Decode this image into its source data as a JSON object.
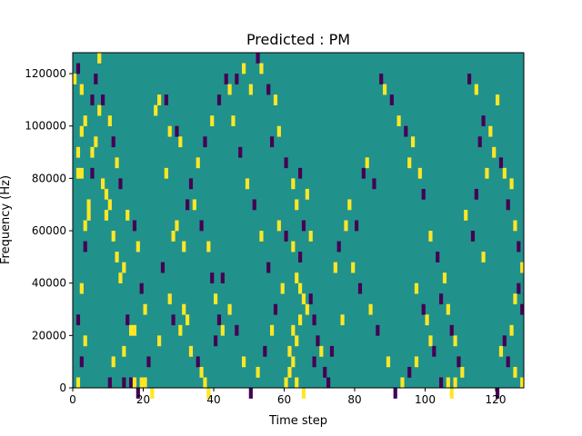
{
  "chart_data": {
    "type": "heatmap",
    "title": "Predicted : PM",
    "xlabel": "Time step",
    "ylabel": "Frequency (Hz)",
    "xlim": [
      0,
      128
    ],
    "ylim": [
      0,
      128000
    ],
    "xticks": [
      0,
      20,
      40,
      60,
      80,
      100,
      120
    ],
    "yticks": [
      0,
      20000,
      40000,
      60000,
      80000,
      100000,
      120000
    ],
    "xtick_labels": [
      "0",
      "20",
      "40",
      "60",
      "80",
      "100",
      "120"
    ],
    "ytick_labels": [
      "0",
      "20000",
      "40000",
      "60000",
      "80000",
      "100000",
      "120000"
    ],
    "grid": false,
    "background_value": 0,
    "colors": {
      "low": "#440154",
      "mid": "#21918c",
      "high": "#fde725"
    },
    "cell_width": 1,
    "cell_height": 4000,
    "cells": [
      [
        0,
        120000,
        1
      ],
      [
        1,
        124000,
        -1
      ],
      [
        2,
        116000,
        1
      ],
      [
        3,
        104000,
        1
      ],
      [
        2,
        100000,
        1
      ],
      [
        1,
        92000,
        1
      ],
      [
        2,
        84000,
        1
      ],
      [
        1,
        84000,
        1
      ],
      [
        4,
        68000,
        1
      ],
      [
        3,
        64000,
        1
      ],
      [
        6,
        120000,
        -1
      ],
      [
        7,
        128000,
        1
      ],
      [
        5,
        112000,
        -1
      ],
      [
        7,
        108000,
        1
      ],
      [
        5,
        92000,
        1
      ],
      [
        8,
        80000,
        1
      ],
      [
        9,
        76000,
        1
      ],
      [
        10,
        72000,
        1
      ],
      [
        9,
        68000,
        1
      ],
      [
        11,
        60000,
        1
      ],
      [
        12,
        52000,
        1
      ],
      [
        14,
        48000,
        1
      ],
      [
        13,
        44000,
        1
      ],
      [
        15,
        28000,
        -1
      ],
      [
        16,
        24000,
        1
      ],
      [
        17,
        24000,
        1
      ],
      [
        14,
        16000,
        1
      ],
      [
        11,
        12000,
        1
      ],
      [
        10,
        4000,
        -1
      ],
      [
        14,
        4000,
        -1
      ],
      [
        16,
        4000,
        -1
      ],
      [
        17,
        4000,
        1
      ],
      [
        19,
        4000,
        1
      ],
      [
        20,
        4000,
        1
      ],
      [
        18,
        0,
        -1
      ],
      [
        22,
        0,
        1
      ],
      [
        24,
        112000,
        1
      ],
      [
        23,
        108000,
        1
      ],
      [
        26,
        112000,
        -1
      ],
      [
        27,
        100000,
        1
      ],
      [
        29,
        100000,
        -1
      ],
      [
        26,
        84000,
        1
      ],
      [
        30,
        96000,
        1
      ],
      [
        32,
        72000,
        -1
      ],
      [
        28,
        60000,
        1
      ],
      [
        31,
        56000,
        1
      ],
      [
        29,
        64000,
        1
      ],
      [
        31,
        32000,
        1
      ],
      [
        32,
        28000,
        1
      ],
      [
        30,
        24000,
        1
      ],
      [
        33,
        16000,
        1
      ],
      [
        35,
        12000,
        -1
      ],
      [
        36,
        8000,
        1
      ],
      [
        37,
        4000,
        1
      ],
      [
        38,
        0,
        1
      ],
      [
        39,
        44000,
        -1
      ],
      [
        40,
        36000,
        1
      ],
      [
        41,
        28000,
        -1
      ],
      [
        42,
        24000,
        1
      ],
      [
        40,
        20000,
        -1
      ],
      [
        43,
        120000,
        -1
      ],
      [
        44,
        116000,
        1
      ],
      [
        46,
        120000,
        -1
      ],
      [
        48,
        124000,
        1
      ],
      [
        50,
        116000,
        1
      ],
      [
        52,
        128000,
        -1
      ],
      [
        53,
        124000,
        1
      ],
      [
        55,
        116000,
        -1
      ],
      [
        57,
        112000,
        1
      ],
      [
        58,
        100000,
        1
      ],
      [
        56,
        96000,
        -1
      ],
      [
        60,
        88000,
        -1
      ],
      [
        62,
        80000,
        1
      ],
      [
        64,
        84000,
        -1
      ],
      [
        66,
        76000,
        1
      ],
      [
        63,
        72000,
        1
      ],
      [
        65,
        64000,
        -1
      ],
      [
        67,
        60000,
        1
      ],
      [
        62,
        56000,
        1
      ],
      [
        64,
        52000,
        -1
      ],
      [
        63,
        44000,
        1
      ],
      [
        64,
        40000,
        1
      ],
      [
        65,
        36000,
        1
      ],
      [
        66,
        32000,
        1
      ],
      [
        64,
        28000,
        1
      ],
      [
        62,
        24000,
        1
      ],
      [
        63,
        20000,
        1
      ],
      [
        61,
        16000,
        1
      ],
      [
        62,
        12000,
        1
      ],
      [
        61,
        8000,
        1
      ],
      [
        60,
        4000,
        1
      ],
      [
        63,
        4000,
        1
      ],
      [
        65,
        0,
        1
      ],
      [
        67,
        36000,
        -1
      ],
      [
        68,
        28000,
        -1
      ],
      [
        69,
        20000,
        -1
      ],
      [
        70,
        16000,
        1
      ],
      [
        68,
        12000,
        -1
      ],
      [
        71,
        8000,
        -1
      ],
      [
        72,
        4000,
        -1
      ],
      [
        74,
        48000,
        1
      ],
      [
        75,
        56000,
        -1
      ],
      [
        77,
        64000,
        1
      ],
      [
        78,
        72000,
        1
      ],
      [
        80,
        64000,
        -1
      ],
      [
        82,
        84000,
        -1
      ],
      [
        83,
        88000,
        1
      ],
      [
        85,
        80000,
        -1
      ],
      [
        87,
        120000,
        -1
      ],
      [
        88,
        116000,
        1
      ],
      [
        90,
        112000,
        -1
      ],
      [
        92,
        104000,
        1
      ],
      [
        94,
        100000,
        -1
      ],
      [
        96,
        96000,
        1
      ],
      [
        95,
        88000,
        1
      ],
      [
        98,
        84000,
        1
      ],
      [
        99,
        76000,
        -1
      ],
      [
        101,
        60000,
        1
      ],
      [
        103,
        52000,
        -1
      ],
      [
        105,
        44000,
        1
      ],
      [
        104,
        36000,
        -1
      ],
      [
        106,
        32000,
        1
      ],
      [
        107,
        24000,
        -1
      ],
      [
        108,
        20000,
        1
      ],
      [
        109,
        12000,
        -1
      ],
      [
        110,
        8000,
        1
      ],
      [
        104,
        4000,
        -1
      ],
      [
        106,
        4000,
        1
      ],
      [
        108,
        4000,
        1
      ],
      [
        107,
        0,
        1
      ],
      [
        112,
        120000,
        -1
      ],
      [
        114,
        116000,
        1
      ],
      [
        116,
        104000,
        -1
      ],
      [
        118,
        100000,
        1
      ],
      [
        119,
        92000,
        1
      ],
      [
        121,
        88000,
        -1
      ],
      [
        122,
        84000,
        1
      ],
      [
        124,
        80000,
        1
      ],
      [
        123,
        72000,
        -1
      ],
      [
        125,
        64000,
        1
      ],
      [
        126,
        56000,
        -1
      ],
      [
        127,
        48000,
        1
      ],
      [
        126,
        40000,
        -1
      ],
      [
        125,
        36000,
        1
      ],
      [
        127,
        32000,
        -1
      ],
      [
        124,
        24000,
        1
      ],
      [
        122,
        20000,
        -1
      ],
      [
        121,
        16000,
        1
      ],
      [
        123,
        12000,
        -1
      ],
      [
        125,
        8000,
        1
      ],
      [
        127,
        4000,
        1
      ],
      [
        120,
        0,
        -1
      ],
      [
        116,
        52000,
        1
      ],
      [
        113,
        60000,
        -1
      ],
      [
        111,
        68000,
        1
      ],
      [
        114,
        76000,
        -1
      ],
      [
        117,
        84000,
        1
      ],
      [
        115,
        96000,
        -1
      ],
      [
        120,
        112000,
        1
      ],
      [
        97,
        40000,
        1
      ],
      [
        99,
        32000,
        -1
      ],
      [
        100,
        28000,
        1
      ],
      [
        101,
        20000,
        1
      ],
      [
        102,
        16000,
        -1
      ],
      [
        97,
        12000,
        1
      ],
      [
        95,
        8000,
        -1
      ],
      [
        93,
        4000,
        1
      ],
      [
        91,
        0,
        -1
      ],
      [
        89,
        12000,
        1
      ],
      [
        86,
        24000,
        -1
      ],
      [
        84,
        32000,
        1
      ],
      [
        81,
        40000,
        -1
      ],
      [
        79,
        48000,
        1
      ],
      [
        76,
        28000,
        1
      ],
      [
        73,
        16000,
        -1
      ],
      [
        59,
        40000,
        1
      ],
      [
        57,
        32000,
        -1
      ],
      [
        56,
        24000,
        1
      ],
      [
        54,
        16000,
        -1
      ],
      [
        52,
        8000,
        1
      ],
      [
        50,
        0,
        -1
      ],
      [
        48,
        12000,
        1
      ],
      [
        46,
        24000,
        -1
      ],
      [
        44,
        32000,
        1
      ],
      [
        42,
        44000,
        -1
      ],
      [
        38,
        56000,
        1
      ],
      [
        36,
        64000,
        -1
      ],
      [
        34,
        72000,
        1
      ],
      [
        33,
        80000,
        -1
      ],
      [
        35,
        88000,
        1
      ],
      [
        37,
        96000,
        -1
      ],
      [
        39,
        104000,
        1
      ],
      [
        41,
        112000,
        -1
      ],
      [
        45,
        104000,
        1
      ],
      [
        47,
        92000,
        -1
      ],
      [
        49,
        80000,
        1
      ],
      [
        51,
        72000,
        -1
      ],
      [
        53,
        60000,
        1
      ],
      [
        55,
        48000,
        -1
      ],
      [
        58,
        64000,
        1
      ],
      [
        60,
        60000,
        -1
      ],
      [
        25,
        48000,
        -1
      ],
      [
        27,
        36000,
        1
      ],
      [
        28,
        28000,
        -1
      ],
      [
        24,
        20000,
        1
      ],
      [
        21,
        12000,
        -1
      ],
      [
        20,
        32000,
        1
      ],
      [
        19,
        40000,
        -1
      ],
      [
        18,
        56000,
        1
      ],
      [
        17,
        64000,
        -1
      ],
      [
        15,
        68000,
        1
      ],
      [
        13,
        80000,
        -1
      ],
      [
        12,
        88000,
        1
      ],
      [
        11,
        96000,
        -1
      ],
      [
        10,
        104000,
        1
      ],
      [
        8,
        112000,
        -1
      ],
      [
        6,
        96000,
        1
      ],
      [
        5,
        84000,
        -1
      ],
      [
        4,
        72000,
        1
      ],
      [
        3,
        56000,
        -1
      ],
      [
        2,
        40000,
        1
      ],
      [
        1,
        28000,
        -1
      ],
      [
        3,
        20000,
        1
      ],
      [
        2,
        12000,
        -1
      ],
      [
        1,
        4000,
        1
      ]
    ]
  }
}
